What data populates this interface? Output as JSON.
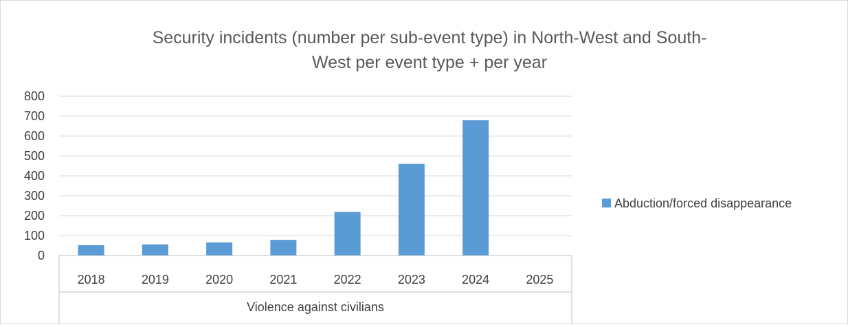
{
  "chart_data": {
    "type": "bar",
    "title_lines": [
      "Security incidents (number per sub-event type) in North-West and South-",
      "West per event type + per year"
    ],
    "categories": [
      "2018",
      "2019",
      "2020",
      "2021",
      "2022",
      "2023",
      "2024",
      "2025"
    ],
    "group_label": "Violence against civilians",
    "series": [
      {
        "name": "Abduction/forced disappearance",
        "values": [
          52,
          56,
          66,
          79,
          219,
          460,
          679,
          0
        ],
        "color": "#5b9bd5"
      }
    ],
    "ylim": [
      0,
      800
    ],
    "yticks": [
      "0",
      "100",
      "200",
      "300",
      "400",
      "500",
      "600",
      "700",
      "800"
    ],
    "grid": true,
    "legend_position": "right",
    "colors": {
      "grid": "#d9d9d9",
      "axis": "#bfbfbf",
      "text": "#404040",
      "title": "#595959"
    }
  }
}
